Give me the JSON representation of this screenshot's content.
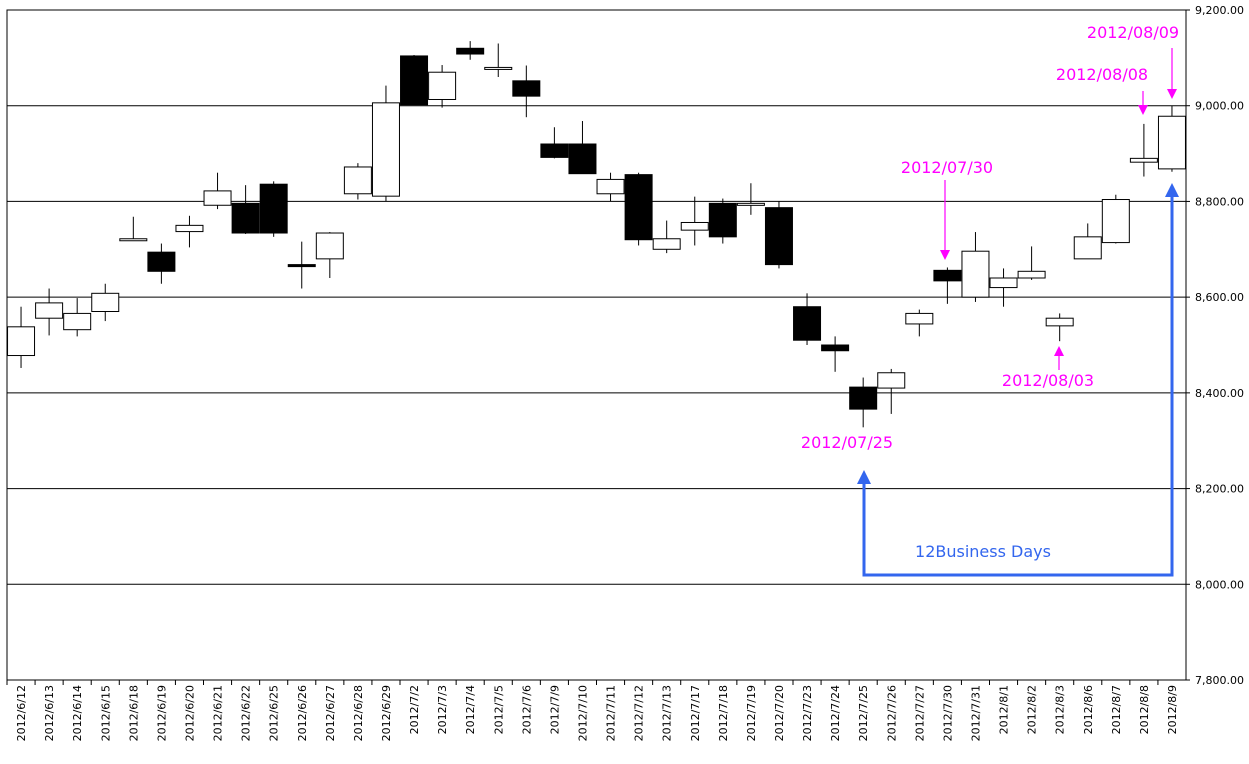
{
  "chart_data": {
    "type": "candlestick",
    "y_axis": {
      "min": 7800,
      "max": 9200,
      "step": 200,
      "position": "right"
    },
    "grid": "horizontal",
    "x": [
      "2012/6/12",
      "2012/6/13",
      "2012/6/14",
      "2012/6/15",
      "2012/6/18",
      "2012/6/19",
      "2012/6/20",
      "2012/6/21",
      "2012/6/22",
      "2012/6/25",
      "2012/6/26",
      "2012/6/27",
      "2012/6/28",
      "2012/6/29",
      "2012/7/2",
      "2012/7/3",
      "2012/7/4",
      "2012/7/5",
      "2012/7/6",
      "2012/7/9",
      "2012/7/10",
      "2012/7/11",
      "2012/7/12",
      "2012/7/13",
      "2012/7/17",
      "2012/7/18",
      "2012/7/19",
      "2012/7/20",
      "2012/7/23",
      "2012/7/24",
      "2012/7/25",
      "2012/7/26",
      "2012/7/27",
      "2012/7/30",
      "2012/7/31",
      "2012/8/1",
      "2012/8/2",
      "2012/8/3",
      "2012/8/6",
      "2012/8/7",
      "2012/8/8",
      "2012/8/9"
    ],
    "open": [
      8478,
      8556,
      8532,
      8570,
      8718,
      8694,
      8737,
      8792,
      8796,
      8836,
      8668,
      8680,
      8816,
      8811,
      9104,
      9013,
      9120,
      9080,
      9052,
      8920,
      8920,
      8816,
      8856,
      8700,
      8740,
      8796,
      8794,
      8787,
      8580,
      8500,
      8412,
      8410,
      8544,
      8656,
      8600,
      8620,
      8640,
      8540,
      8680,
      8714,
      8882,
      8868
    ],
    "high": [
      8580,
      8618,
      8598,
      8628,
      8768,
      8712,
      8770,
      8860,
      8834,
      8842,
      8716,
      8736,
      8880,
      9042,
      9106,
      9085,
      9135,
      9130,
      9084,
      8955,
      8968,
      8860,
      8860,
      8760,
      8810,
      8806,
      8838,
      8800,
      8608,
      8518,
      8432,
      8450,
      8574,
      8662,
      8736,
      8660,
      8706,
      8566,
      8754,
      8814,
      8962,
      9000
    ],
    "low": [
      8452,
      8520,
      8518,
      8550,
      8718,
      8628,
      8704,
      8784,
      8732,
      8726,
      8618,
      8640,
      8804,
      8800,
      9002,
      8996,
      9096,
      9060,
      8976,
      8890,
      8858,
      8800,
      8708,
      8692,
      8708,
      8712,
      8772,
      8660,
      8500,
      8444,
      8328,
      8356,
      8518,
      8586,
      8590,
      8580,
      8636,
      8508,
      8680,
      8712,
      8852,
      8862
    ],
    "close": [
      8538,
      8588,
      8566,
      8608,
      8722,
      8654,
      8750,
      8822,
      8734,
      8734,
      8664,
      8734,
      8872,
      9006,
      9002,
      9070,
      9108,
      9080,
      9020,
      8892,
      8858,
      8846,
      8720,
      8722,
      8756,
      8726,
      8796,
      8668,
      8510,
      8488,
      8366,
      8442,
      8566,
      8634,
      8696,
      8640,
      8654,
      8556,
      8726,
      8804,
      8890,
      8978
    ]
  },
  "annotations": {
    "d0725": "2012/07/25",
    "d0730": "2012/07/30",
    "d0803": "2012/08/03",
    "d0808": "2012/08/08",
    "d0809": "2012/08/09",
    "span": "12Business Days"
  },
  "colors": {
    "magenta": "#ff00ff",
    "blue": "#3366ee",
    "bear": "#000000",
    "bull": "#ffffff"
  }
}
